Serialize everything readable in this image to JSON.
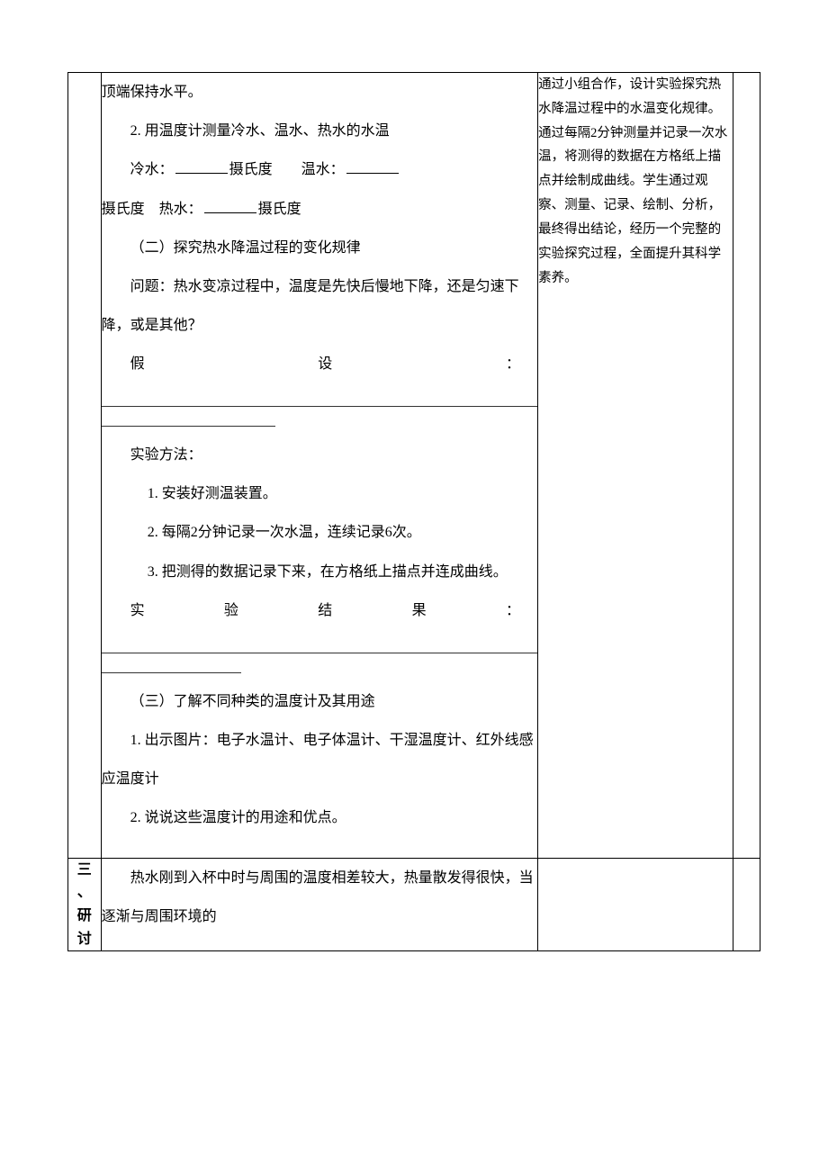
{
  "row1": {
    "content": {
      "p1": "顶端保持水平。",
      "p2": "2. 用温度计测量冷水、温水、热水的水温",
      "p3_a": "冷水：",
      "p3_b": "摄氏度",
      "p3_c": "温水：",
      "p3_d": "摄氏度",
      "p3_e": "热水：",
      "p3_f": "摄氏度",
      "p4": "（二）探究热水降温过程的变化规律",
      "p5": "问题：热水变凉过程中，温度是先快后慢地下降，还是匀速下降，或是其他？",
      "p6_label_a": "假",
      "p6_label_b": "设",
      "p6_colon": "：",
      "p7": "实验方法：",
      "m1": "1. 安装好测温装置。",
      "m2": "2. 每隔2分钟记录一次水温，连续记录6次。",
      "m3": "3. 把测得的数据记录下来，在方格纸上描点并连成曲线。",
      "p8_a": "实",
      "p8_b": "验",
      "p8_c": "结",
      "p8_d": "果",
      "p8_colon": "：",
      "p9": "（三）了解不同种类的温度计及其用途",
      "p10": "1. 出示图片：电子水温计、电子体温计、干湿温度计、红外线感应温度计",
      "p11": "2. 说说这些温度计的用途和优点。"
    },
    "notes": "通过小组合作，设计实验探究热水降温过程中的水温变化规律。通过每隔2分钟测量并记录一次水温，将测得的数据在方格纸上描点并绘制成曲线。学生通过观察、测量、记录、绘制、分析，最终得出结论，经历一个完整的实验探究过程，全面提升其科学素养。"
  },
  "row2": {
    "label_1": "三",
    "label_2": "、",
    "label_3": "研",
    "label_4": "讨",
    "content": "　　热水刚到入杯中时与周围的温度相差较大，热量散发得很快，当逐渐与周围环境的"
  },
  "colors": {
    "border": "#000000",
    "text": "#000000",
    "background": "#ffffff"
  }
}
